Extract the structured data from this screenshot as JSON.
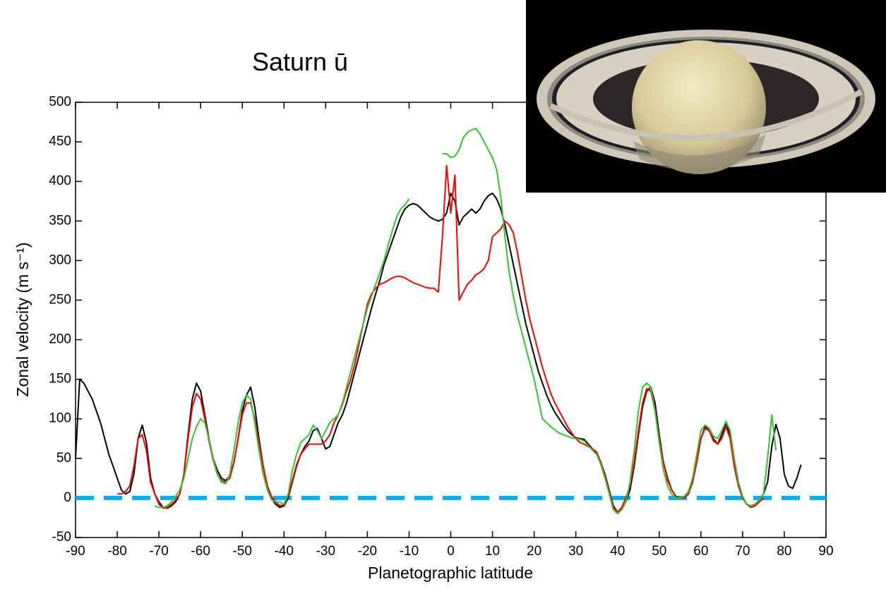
{
  "chart_data": {
    "type": "line",
    "title": "Saturn ū",
    "xlabel": "Planetographic latitude",
    "ylabel": "Zonal velocity (m s⁻¹)",
    "x": [
      -90,
      -89,
      -88,
      -87,
      -86,
      -85,
      -84,
      -83,
      -82,
      -81,
      -80,
      -79,
      -78,
      -77,
      -76,
      -75,
      -74,
      -73,
      -72,
      -71,
      -70,
      -69,
      -68,
      -67,
      -66,
      -65,
      -64,
      -63,
      -62,
      -61,
      -60,
      -59,
      -58,
      -57,
      -56,
      -55,
      -54,
      -53,
      -52,
      -51,
      -50,
      -49,
      -48,
      -47,
      -46,
      -45,
      -44,
      -43,
      -42,
      -41,
      -40,
      -39,
      -38,
      -37,
      -36,
      -35,
      -34,
      -33,
      -32,
      -31,
      -30,
      -29,
      -28,
      -27,
      -26,
      -25,
      -24,
      -23,
      -22,
      -21,
      -20,
      -19,
      -18,
      -17,
      -16,
      -15,
      -14,
      -13,
      -12,
      -11,
      -10,
      -9,
      -8,
      -7,
      -6,
      -5,
      -4,
      -3,
      -2,
      -1,
      0,
      1,
      2,
      3,
      4,
      5,
      6,
      7,
      8,
      9,
      10,
      11,
      12,
      13,
      14,
      15,
      16,
      17,
      18,
      19,
      20,
      21,
      22,
      23,
      24,
      25,
      26,
      27,
      28,
      29,
      30,
      31,
      32,
      33,
      34,
      35,
      36,
      37,
      38,
      39,
      40,
      41,
      42,
      43,
      44,
      45,
      46,
      47,
      48,
      49,
      50,
      51,
      52,
      53,
      54,
      55,
      56,
      57,
      58,
      59,
      60,
      61,
      62,
      63,
      64,
      65,
      66,
      67,
      68,
      69,
      70,
      71,
      72,
      73,
      74,
      75,
      76,
      77,
      78,
      79,
      80,
      81,
      82,
      83,
      84
    ],
    "series": [
      {
        "color": "#000000",
        "values": [
          50,
          150,
          145,
          135,
          125,
          110,
          95,
          75,
          55,
          40,
          25,
          10,
          5,
          8,
          30,
          75,
          92,
          70,
          25,
          5,
          -5,
          -12,
          -13,
          -10,
          -5,
          5,
          30,
          80,
          125,
          145,
          135,
          105,
          75,
          50,
          35,
          25,
          22,
          28,
          45,
          75,
          110,
          130,
          140,
          115,
          75,
          40,
          15,
          0,
          -8,
          -12,
          -10,
          0,
          20,
          40,
          55,
          65,
          72,
          85,
          88,
          75,
          62,
          65,
          80,
          95,
          105,
          120,
          140,
          160,
          180,
          200,
          220,
          240,
          258,
          275,
          295,
          310,
          325,
          340,
          355,
          365,
          370,
          372,
          370,
          365,
          360,
          355,
          352,
          350,
          352,
          360,
          385,
          375,
          345,
          355,
          360,
          365,
          360,
          365,
          375,
          382,
          385,
          378,
          365,
          345,
          320,
          295,
          270,
          245,
          220,
          200,
          180,
          160,
          145,
          130,
          118,
          108,
          100,
          92,
          85,
          80,
          76,
          75,
          74,
          68,
          62,
          55,
          45,
          30,
          10,
          -10,
          -18,
          -15,
          -5,
          10,
          40,
          80,
          115,
          135,
          140,
          120,
          80,
          45,
          25,
          10,
          2,
          0,
          0,
          5,
          20,
          45,
          75,
          90,
          85,
          75,
          68,
          80,
          95,
          80,
          40,
          15,
          0,
          -8,
          -10,
          -8,
          -2,
          5,
          20,
          65,
          93,
          75,
          30,
          15,
          12,
          25,
          42
        ]
      },
      {
        "color": "#ff0000",
        "values": [
          null,
          null,
          null,
          null,
          null,
          null,
          null,
          null,
          null,
          null,
          5,
          5,
          8,
          15,
          40,
          75,
          80,
          60,
          20,
          5,
          -8,
          -13,
          -12,
          -8,
          -3,
          5,
          30,
          75,
          115,
          132,
          125,
          100,
          72,
          48,
          30,
          22,
          20,
          25,
          45,
          75,
          105,
          120,
          120,
          100,
          70,
          40,
          15,
          2,
          -5,
          -10,
          -8,
          2,
          22,
          42,
          55,
          62,
          68,
          68,
          68,
          68,
          72,
          80,
          95,
          105,
          118,
          135,
          150,
          170,
          195,
          220,
          245,
          258,
          265,
          270,
          272,
          275,
          278,
          280,
          280,
          278,
          275,
          272,
          270,
          268,
          266,
          265,
          265,
          260,
          330,
          420,
          360,
          408,
          250,
          260,
          270,
          275,
          282,
          285,
          290,
          300,
          330,
          335,
          340,
          350,
          345,
          335,
          310,
          280,
          250,
          225,
          205,
          185,
          165,
          148,
          132,
          120,
          110,
          100,
          90,
          82,
          75,
          70,
          68,
          65,
          62,
          58,
          45,
          28,
          8,
          -12,
          -18,
          -12,
          0,
          15,
          45,
          85,
          120,
          138,
          135,
          110,
          75,
          45,
          22,
          10,
          2,
          0,
          0,
          5,
          20,
          45,
          75,
          88,
          85,
          72,
          68,
          75,
          90,
          75,
          40,
          15,
          0,
          -8,
          -12,
          -10,
          -5,
          0,
          null,
          null,
          null,
          null,
          null,
          null,
          null,
          null,
          null
        ]
      },
      {
        "color": "#33c433",
        "values": [
          null,
          null,
          null,
          null,
          null,
          null,
          null,
          null,
          null,
          null,
          null,
          null,
          null,
          null,
          null,
          null,
          null,
          null,
          null,
          -10,
          -12,
          -12,
          -10,
          -5,
          2,
          10,
          25,
          50,
          75,
          90,
          100,
          95,
          75,
          50,
          30,
          20,
          18,
          30,
          60,
          95,
          120,
          130,
          125,
          95,
          60,
          30,
          10,
          -2,
          -5,
          -5,
          -8,
          5,
          35,
          55,
          70,
          75,
          80,
          92,
          85,
          75,
          85,
          95,
          100,
          105,
          120,
          140,
          160,
          180,
          200,
          220,
          240,
          255,
          270,
          285,
          300,
          320,
          338,
          355,
          365,
          370,
          378,
          null,
          null,
          null,
          null,
          null,
          null,
          null,
          435,
          435,
          430,
          432,
          440,
          455,
          462,
          465,
          467,
          460,
          450,
          440,
          430,
          415,
          380,
          330,
          285,
          255,
          230,
          210,
          190,
          170,
          150,
          125,
          100,
          95,
          90,
          86,
          82,
          80,
          78,
          76,
          75,
          74,
          72,
          66,
          60,
          55,
          42,
          25,
          5,
          -15,
          -20,
          -15,
          -5,
          20,
          60,
          110,
          140,
          145,
          140,
          110,
          70,
          35,
          15,
          5,
          0,
          0,
          2,
          8,
          25,
          55,
          85,
          92,
          88,
          78,
          75,
          85,
          97,
          85,
          50,
          20,
          2,
          -8,
          -10,
          -8,
          -2,
          5,
          50,
          105,
          60,
          null,
          null,
          null,
          null,
          null,
          null
        ]
      }
    ],
    "zero_line": {
      "value": 0,
      "color": "#00b0f0",
      "style": "dashed"
    },
    "xlim": [
      -90,
      90
    ],
    "xticks": [
      -90,
      -80,
      -70,
      -60,
      -50,
      -40,
      -30,
      -20,
      -10,
      0,
      10,
      20,
      30,
      40,
      50,
      60,
      70,
      80,
      90
    ],
    "ylim": [
      -50,
      500
    ],
    "yticks": [
      -50,
      0,
      50,
      100,
      150,
      200,
      250,
      300,
      350,
      400,
      450,
      500
    ]
  }
}
